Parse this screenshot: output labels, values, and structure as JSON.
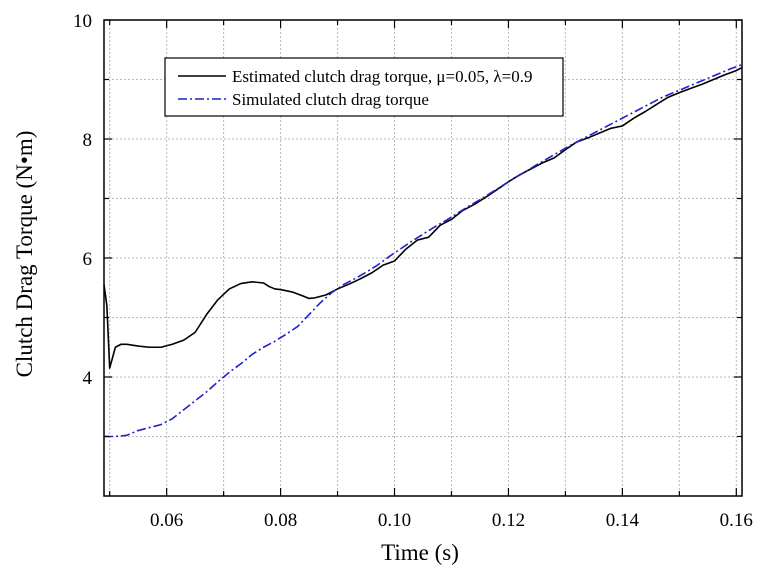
{
  "chart_data": {
    "type": "line",
    "xlabel": "Time  (s)",
    "ylabel": "Clutch Drag Torque  (N•m)",
    "xlim": [
      0.049,
      0.161
    ],
    "ylim": [
      2.0,
      10.0
    ],
    "x_ticks": [
      0.06,
      0.08,
      0.1,
      0.12,
      0.14,
      0.16
    ],
    "x_tick_labels": [
      "0.06",
      "0.08",
      "0.10",
      "0.12",
      "0.14",
      "0.16"
    ],
    "y_ticks": [
      4,
      6,
      8,
      10
    ],
    "y_tick_labels": [
      "4",
      "6",
      "8",
      "10"
    ],
    "grid": true,
    "legend_position": "top",
    "series": [
      {
        "name": "Estimated clutch drag torque, μ=0.05, λ=0.9",
        "color": "#000000",
        "style": "solid",
        "x": [
          0.049,
          0.0495,
          0.05,
          0.051,
          0.052,
          0.053,
          0.055,
          0.057,
          0.059,
          0.061,
          0.063,
          0.065,
          0.067,
          0.069,
          0.071,
          0.073,
          0.075,
          0.077,
          0.078,
          0.079,
          0.08,
          0.082,
          0.084,
          0.085,
          0.086,
          0.088,
          0.09,
          0.092,
          0.094,
          0.096,
          0.098,
          0.1,
          0.102,
          0.104,
          0.106,
          0.108,
          0.11,
          0.112,
          0.114,
          0.116,
          0.118,
          0.12,
          0.122,
          0.124,
          0.126,
          0.128,
          0.13,
          0.132,
          0.134,
          0.136,
          0.138,
          0.14,
          0.142,
          0.144,
          0.146,
          0.148,
          0.15,
          0.152,
          0.154,
          0.156,
          0.158,
          0.16,
          0.161
        ],
        "y": [
          5.55,
          5.2,
          4.15,
          4.5,
          4.55,
          4.55,
          4.52,
          4.5,
          4.5,
          4.55,
          4.62,
          4.75,
          5.05,
          5.3,
          5.48,
          5.57,
          5.6,
          5.58,
          5.52,
          5.48,
          5.47,
          5.43,
          5.36,
          5.32,
          5.33,
          5.38,
          5.48,
          5.56,
          5.65,
          5.75,
          5.88,
          5.95,
          6.15,
          6.3,
          6.35,
          6.55,
          6.65,
          6.8,
          6.9,
          7.02,
          7.15,
          7.28,
          7.4,
          7.5,
          7.6,
          7.68,
          7.82,
          7.95,
          8.02,
          8.1,
          8.18,
          8.22,
          8.35,
          8.46,
          8.58,
          8.7,
          8.78,
          8.85,
          8.92,
          9.0,
          9.08,
          9.15,
          9.2
        ]
      },
      {
        "name": "Simulated clutch drag torque",
        "color": "#2222cc",
        "style": "dashdot",
        "x": [
          0.049,
          0.051,
          0.053,
          0.055,
          0.057,
          0.059,
          0.061,
          0.063,
          0.065,
          0.067,
          0.069,
          0.071,
          0.073,
          0.075,
          0.077,
          0.079,
          0.081,
          0.083,
          0.085,
          0.087,
          0.089,
          0.091,
          0.093,
          0.095,
          0.097,
          0.099,
          0.101,
          0.103,
          0.105,
          0.107,
          0.109,
          0.111,
          0.113,
          0.115,
          0.117,
          0.119,
          0.121,
          0.123,
          0.125,
          0.127,
          0.129,
          0.131,
          0.133,
          0.135,
          0.137,
          0.139,
          0.141,
          0.143,
          0.145,
          0.147,
          0.149,
          0.151,
          0.153,
          0.155,
          0.157,
          0.159,
          0.161
        ],
        "y": [
          3.0,
          3.0,
          3.02,
          3.1,
          3.15,
          3.2,
          3.3,
          3.45,
          3.6,
          3.75,
          3.92,
          4.08,
          4.22,
          4.38,
          4.5,
          4.6,
          4.72,
          4.85,
          5.05,
          5.25,
          5.42,
          5.55,
          5.65,
          5.76,
          5.88,
          6.02,
          6.15,
          6.28,
          6.4,
          6.52,
          6.63,
          6.75,
          6.87,
          6.98,
          7.1,
          7.22,
          7.34,
          7.45,
          7.57,
          7.68,
          7.79,
          7.9,
          8.0,
          8.1,
          8.2,
          8.3,
          8.4,
          8.5,
          8.6,
          8.7,
          8.78,
          8.86,
          8.94,
          9.02,
          9.1,
          9.18,
          9.25
        ]
      }
    ]
  }
}
